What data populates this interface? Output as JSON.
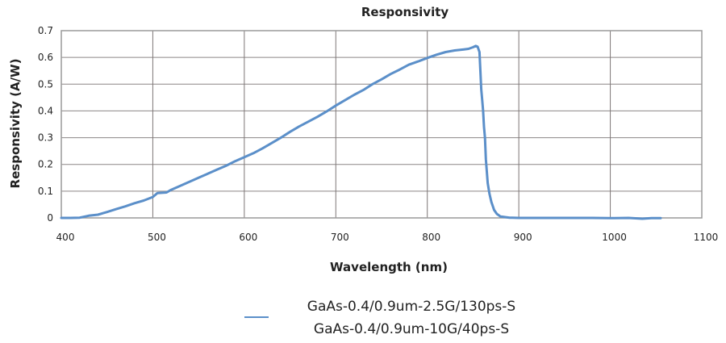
{
  "chart_data": {
    "type": "line",
    "title": "Responsivity",
    "xlabel": "Wavelength (nm)",
    "ylabel": "Responsivity (A/W)",
    "xlim": [
      400,
      1100
    ],
    "ylim": [
      0,
      0.7
    ],
    "xticks": [
      400,
      500,
      600,
      700,
      800,
      900,
      1000,
      1100
    ],
    "yticks": [
      0,
      0.1,
      0.2,
      0.3,
      0.4,
      0.5,
      0.6,
      0.7
    ],
    "xtick_labels": [
      "400",
      "500",
      "600",
      "700",
      "800",
      "900",
      "1000",
      "1100"
    ],
    "ytick_labels": [
      "0",
      "0.1",
      "0.2",
      "0.3",
      "0.4",
      "0.5",
      "0.6",
      "0.7"
    ],
    "grid": true,
    "legend_position": "bottom-center",
    "line_color": "#5b8fc9",
    "series": [
      {
        "name": "GaAs-0.4/0.9um-2.5G/130ps-S\nGaAs-0.4/0.9um-10G/40ps-S",
        "legend_lines": [
          "GaAs-0.4/0.9um-2.5G/130ps-S",
          "GaAs-0.4/0.9um-10G/40ps-S"
        ],
        "x": [
          400,
          410,
          420,
          430,
          440,
          450,
          460,
          470,
          480,
          490,
          500,
          505,
          515,
          520,
          530,
          540,
          550,
          560,
          570,
          580,
          590,
          600,
          610,
          620,
          630,
          640,
          650,
          660,
          670,
          680,
          690,
          700,
          710,
          720,
          730,
          740,
          750,
          760,
          770,
          780,
          790,
          800,
          810,
          820,
          830,
          840,
          845,
          850,
          853,
          855,
          857,
          858,
          859,
          860,
          861,
          862,
          863,
          864,
          866,
          868,
          870,
          873,
          876,
          880,
          890,
          900,
          920,
          950,
          980,
          1000,
          1020,
          1035,
          1045,
          1055
        ],
        "y": [
          0.0,
          0.0,
          0.001,
          0.008,
          0.012,
          0.022,
          0.033,
          0.043,
          0.055,
          0.065,
          0.078,
          0.093,
          0.095,
          0.105,
          0.12,
          0.135,
          0.15,
          0.165,
          0.18,
          0.195,
          0.212,
          0.227,
          0.242,
          0.26,
          0.28,
          0.3,
          0.322,
          0.342,
          0.36,
          0.378,
          0.398,
          0.42,
          0.44,
          0.46,
          0.478,
          0.5,
          0.518,
          0.538,
          0.555,
          0.573,
          0.585,
          0.598,
          0.61,
          0.62,
          0.626,
          0.63,
          0.632,
          0.638,
          0.643,
          0.64,
          0.62,
          0.55,
          0.48,
          0.44,
          0.4,
          0.34,
          0.3,
          0.22,
          0.13,
          0.09,
          0.06,
          0.03,
          0.015,
          0.005,
          0.001,
          0.0,
          0.0,
          0.0,
          0.0,
          -0.001,
          0.0,
          -0.003,
          -0.001,
          -0.001
        ]
      }
    ]
  }
}
